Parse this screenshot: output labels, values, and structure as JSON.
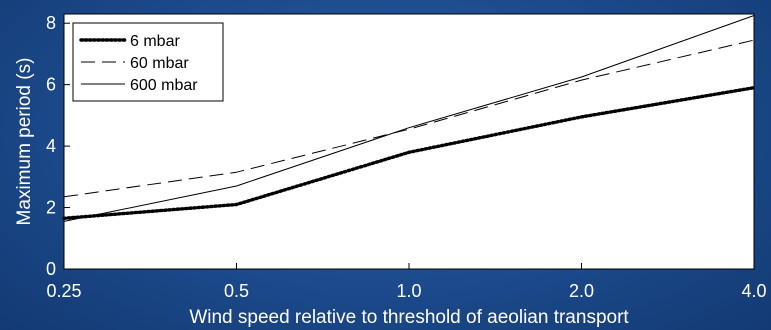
{
  "chart_data": {
    "type": "line",
    "xlabel": "Wind speed relative to threshold of aeolian transport",
    "ylabel": "Maximum  period (s)",
    "x_scale": "log",
    "x": [
      0.25,
      0.5,
      1.0,
      2.0,
      4.0
    ],
    "x_tick_labels": [
      "0.25",
      "0.5",
      "1.0",
      "2.0",
      "4.0"
    ],
    "xlim": [
      0.25,
      4.0
    ],
    "ylim": [
      0,
      8.3
    ],
    "y_ticks": [
      0,
      2,
      4,
      6,
      8
    ],
    "grid": false,
    "legend_position": "top-left",
    "series": [
      {
        "name": "6 mbar",
        "style": "dotted",
        "color": "#000000",
        "values": [
          1.65,
          2.1,
          3.8,
          4.95,
          5.9
        ]
      },
      {
        "name": "60 mbar",
        "style": "dashed",
        "color": "#000000",
        "values": [
          2.35,
          3.15,
          4.55,
          6.15,
          7.45
        ]
      },
      {
        "name": "600 mbar",
        "style": "solid",
        "color": "#000000",
        "values": [
          1.55,
          2.7,
          4.6,
          6.25,
          8.25
        ]
      }
    ]
  }
}
